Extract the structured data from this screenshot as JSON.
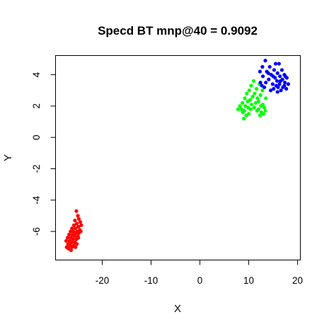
{
  "chart_data": {
    "type": "scatter",
    "title": "Specd BT mnp@40 = 0.9092",
    "xlabel": "X",
    "ylabel": "Y",
    "xlim": [
      -29.5,
      20.5
    ],
    "ylim": [
      -7.8,
      5.2
    ],
    "xticks": [
      -20,
      -10,
      0,
      10,
      20
    ],
    "yticks": [
      -6,
      -4,
      -2,
      0,
      2,
      4
    ],
    "grid": false,
    "legend": "none",
    "series": [
      {
        "color": "#ff0000",
        "points": [
          [
            -25.3,
            -4.7
          ],
          [
            -25.0,
            -5.0
          ],
          [
            -24.8,
            -5.2
          ],
          [
            -25.6,
            -5.3
          ],
          [
            -24.5,
            -5.4
          ],
          [
            -25.2,
            -5.5
          ],
          [
            -24.3,
            -5.6
          ],
          [
            -25.8,
            -5.6
          ],
          [
            -24.9,
            -5.7
          ],
          [
            -25.5,
            -5.8
          ],
          [
            -26.2,
            -5.8
          ],
          [
            -24.6,
            -5.9
          ],
          [
            -25.1,
            -6.0
          ],
          [
            -25.9,
            -6.0
          ],
          [
            -26.5,
            -6.0
          ],
          [
            -24.8,
            -6.1
          ],
          [
            -25.4,
            -6.1
          ],
          [
            -26.1,
            -6.2
          ],
          [
            -26.8,
            -6.2
          ],
          [
            -25.0,
            -6.3
          ],
          [
            -25.7,
            -6.3
          ],
          [
            -26.4,
            -6.4
          ],
          [
            -27.1,
            -6.4
          ],
          [
            -25.3,
            -6.5
          ],
          [
            -26.0,
            -6.5
          ],
          [
            -26.7,
            -6.6
          ],
          [
            -27.4,
            -6.6
          ],
          [
            -25.6,
            -6.7
          ],
          [
            -26.3,
            -6.7
          ],
          [
            -27.0,
            -6.8
          ],
          [
            -25.9,
            -6.9
          ],
          [
            -26.6,
            -6.9
          ],
          [
            -27.3,
            -7.0
          ],
          [
            -26.2,
            -7.0
          ],
          [
            -25.5,
            -7.0
          ],
          [
            -26.9,
            -7.1
          ],
          [
            -26.4,
            -7.2
          ],
          [
            -25.2,
            -6.8
          ],
          [
            -24.9,
            -6.4
          ],
          [
            -24.4,
            -6.0
          ]
        ]
      },
      {
        "color": "#00ff00",
        "points": [
          [
            11.0,
            3.6
          ],
          [
            12.2,
            3.4
          ],
          [
            10.5,
            3.3
          ],
          [
            11.6,
            3.1
          ],
          [
            12.8,
            3.0
          ],
          [
            10.1,
            3.0
          ],
          [
            11.2,
            2.8
          ],
          [
            9.6,
            2.8
          ],
          [
            12.4,
            2.7
          ],
          [
            10.8,
            2.6
          ],
          [
            13.5,
            2.5
          ],
          [
            11.8,
            2.5
          ],
          [
            9.2,
            2.5
          ],
          [
            10.3,
            2.4
          ],
          [
            12.0,
            2.3
          ],
          [
            9.8,
            2.3
          ],
          [
            11.4,
            2.2
          ],
          [
            8.7,
            2.2
          ],
          [
            12.9,
            2.1
          ],
          [
            10.6,
            2.1
          ],
          [
            9.3,
            2.0
          ],
          [
            12.5,
            2.0
          ],
          [
            8.2,
            2.0
          ],
          [
            11.1,
            1.9
          ],
          [
            13.2,
            1.9
          ],
          [
            9.9,
            1.9
          ],
          [
            8.5,
            1.8
          ],
          [
            12.0,
            1.8
          ],
          [
            10.4,
            1.8
          ],
          [
            7.8,
            1.8
          ],
          [
            13.4,
            1.7
          ],
          [
            9.1,
            1.7
          ],
          [
            11.7,
            1.7
          ],
          [
            12.6,
            1.6
          ],
          [
            8.8,
            1.6
          ],
          [
            10.0,
            1.5
          ],
          [
            13.0,
            1.5
          ],
          [
            9.5,
            1.4
          ],
          [
            12.3,
            1.4
          ],
          [
            9.0,
            1.2
          ]
        ]
      },
      {
        "color": "#0000ff",
        "points": [
          [
            13.4,
            4.9
          ],
          [
            15.5,
            4.7
          ],
          [
            16.2,
            4.7
          ],
          [
            12.8,
            4.5
          ],
          [
            14.3,
            4.5
          ],
          [
            16.8,
            4.3
          ],
          [
            15.2,
            4.3
          ],
          [
            12.3,
            4.2
          ],
          [
            13.7,
            4.2
          ],
          [
            15.9,
            4.1
          ],
          [
            17.3,
            4.0
          ],
          [
            14.6,
            4.0
          ],
          [
            16.4,
            3.9
          ],
          [
            12.9,
            3.9
          ],
          [
            15.4,
            3.8
          ],
          [
            17.8,
            3.8
          ],
          [
            16.9,
            3.7
          ],
          [
            14.1,
            3.7
          ],
          [
            15.8,
            3.6
          ],
          [
            12.4,
            3.5
          ],
          [
            17.4,
            3.5
          ],
          [
            13.5,
            3.5
          ],
          [
            16.3,
            3.4
          ],
          [
            14.9,
            3.4
          ],
          [
            18.1,
            3.4
          ],
          [
            15.6,
            3.3
          ],
          [
            12.7,
            3.3
          ],
          [
            17.0,
            3.2
          ],
          [
            16.0,
            3.2
          ],
          [
            13.2,
            3.2
          ],
          [
            17.7,
            3.1
          ],
          [
            15.1,
            3.1
          ],
          [
            16.6,
            3.0
          ],
          [
            14.5,
            3.0
          ],
          [
            15.9,
            2.9
          ],
          [
            17.3,
            3.3
          ],
          [
            16.5,
            3.6
          ],
          [
            15.0,
            3.9
          ],
          [
            14.0,
            4.1
          ],
          [
            17.5,
            3.9
          ]
        ]
      }
    ]
  }
}
